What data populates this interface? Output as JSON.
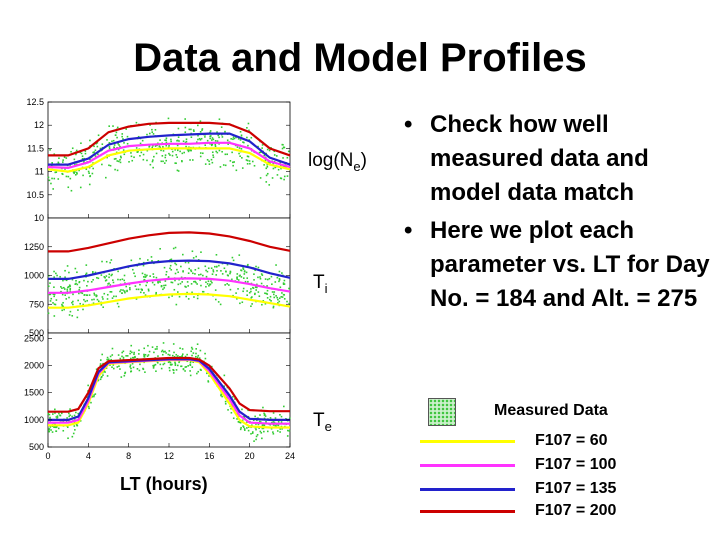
{
  "title": "Data and Model Profiles",
  "bullets": [
    "Check how well measured data and model data match",
    "Here we plot each parameter vs. LT for Day No. = 184 and Alt. = 275"
  ],
  "bullet_symbol": "•",
  "legend": {
    "measured_label": "Measured Data",
    "items": [
      {
        "label": "F107 = 60",
        "color": "#ffff00"
      },
      {
        "label": "F107 = 100",
        "color": "#ff33ff"
      },
      {
        "label": "F107 = 135",
        "color": "#2222cc"
      },
      {
        "label": "F107 = 200",
        "color": "#cc0000"
      }
    ]
  },
  "panel_labels": {
    "ne_base": "log(N",
    "ne_sub": "e",
    "ne_close": ")",
    "ti_base": "T",
    "ti_sub": "i",
    "te_base": "T",
    "te_sub": "e"
  },
  "xlabel": "LT (hours)",
  "chart_data": [
    {
      "type": "line",
      "ylabel": "log(Ne)",
      "xlabel": "LT (hours)",
      "xlim": [
        0,
        24
      ],
      "ylim": [
        10,
        12.5
      ],
      "yticks": [
        "12.5",
        "12",
        "11.5",
        "11",
        "10.5",
        "10"
      ],
      "yticks_vals": [
        12.5,
        12,
        11.5,
        11,
        10.5,
        10
      ],
      "scatter_band": {
        "color": "#33cc33",
        "center": "F107 = 100",
        "spread": 0.35
      },
      "x": [
        0,
        2,
        4,
        6,
        8,
        10,
        12,
        14,
        16,
        18,
        20,
        22,
        24
      ],
      "series": [
        {
          "name": "F107 = 60",
          "color": "#ffff00",
          "values": [
            11.05,
            11.0,
            11.1,
            11.35,
            11.45,
            11.48,
            11.5,
            11.5,
            11.5,
            11.5,
            11.4,
            11.15,
            11.05
          ]
        },
        {
          "name": "F107 = 100",
          "color": "#ff33ff",
          "values": [
            11.1,
            11.08,
            11.2,
            11.45,
            11.55,
            11.58,
            11.6,
            11.6,
            11.62,
            11.62,
            11.5,
            11.22,
            11.1
          ]
        },
        {
          "name": "F107 = 135",
          "color": "#2222cc",
          "values": [
            11.15,
            11.15,
            11.28,
            11.58,
            11.7,
            11.75,
            11.78,
            11.8,
            11.82,
            11.82,
            11.65,
            11.3,
            11.15
          ]
        },
        {
          "name": "F107 = 200",
          "color": "#cc0000",
          "values": [
            11.35,
            11.35,
            11.5,
            11.85,
            11.97,
            12.03,
            12.05,
            12.05,
            12.05,
            12.02,
            11.85,
            11.5,
            11.35
          ]
        }
      ]
    },
    {
      "type": "line",
      "ylabel": "Ti",
      "xlabel": "LT (hours)",
      "xlim": [
        0,
        24
      ],
      "ylim": [
        500,
        1500
      ],
      "yticks": [
        "1250",
        "1000",
        "750",
        "500"
      ],
      "yticks_vals": [
        1250,
        1000,
        750,
        500
      ],
      "scatter_band": {
        "color": "#33cc33",
        "center": "F107 = 100",
        "spread": 160
      },
      "x": [
        0,
        2,
        4,
        6,
        8,
        10,
        12,
        14,
        16,
        18,
        20,
        22,
        24
      ],
      "series": [
        {
          "name": "F107 = 60",
          "color": "#ffff00",
          "values": [
            720,
            720,
            740,
            770,
            800,
            820,
            835,
            840,
            835,
            820,
            790,
            760,
            730
          ]
        },
        {
          "name": "F107 = 100",
          "color": "#ff33ff",
          "values": [
            850,
            850,
            870,
            900,
            930,
            955,
            970,
            975,
            970,
            955,
            925,
            890,
            860
          ]
        },
        {
          "name": "F107 = 135",
          "color": "#2222cc",
          "values": [
            970,
            970,
            1000,
            1040,
            1080,
            1110,
            1125,
            1130,
            1125,
            1105,
            1070,
            1020,
            980
          ]
        },
        {
          "name": "F107 = 200",
          "color": "#cc0000",
          "values": [
            1210,
            1210,
            1240,
            1280,
            1320,
            1350,
            1370,
            1375,
            1365,
            1340,
            1300,
            1250,
            1215
          ]
        }
      ]
    },
    {
      "type": "line",
      "ylabel": "Te",
      "xlabel": "LT (hours)",
      "xlim": [
        0,
        24
      ],
      "ylim": [
        500,
        2600
      ],
      "yticks": [
        "2500",
        "2000",
        "1500",
        "1000",
        "500"
      ],
      "yticks_vals": [
        2500,
        2000,
        1500,
        1000,
        500
      ],
      "xticks": [
        "0",
        "4",
        "8",
        "12",
        "16",
        "20",
        "24"
      ],
      "xticks_vals": [
        0,
        4,
        8,
        12,
        16,
        20,
        24
      ],
      "scatter_band": {
        "color": "#33cc33",
        "center": "F107 = 100",
        "spread": 200
      },
      "x": [
        0,
        2,
        3,
        4,
        5,
        6,
        8,
        10,
        12,
        14,
        15,
        16,
        18,
        19,
        20,
        22,
        24
      ],
      "series": [
        {
          "name": "F107 = 60",
          "color": "#ffff00",
          "values": [
            900,
            900,
            950,
            1300,
            1800,
            2030,
            2060,
            2080,
            2100,
            2100,
            2060,
            1850,
            1300,
            1000,
            880,
            860,
            860
          ]
        },
        {
          "name": "F107 = 100",
          "color": "#ff33ff",
          "values": [
            950,
            950,
            1000,
            1350,
            1850,
            2050,
            2070,
            2090,
            2110,
            2110,
            2080,
            1900,
            1380,
            1080,
            950,
            930,
            930
          ]
        },
        {
          "name": "F107 = 135",
          "color": "#2222cc",
          "values": [
            1000,
            1000,
            1060,
            1400,
            1880,
            2060,
            2080,
            2100,
            2120,
            2120,
            2090,
            1940,
            1450,
            1150,
            1020,
            1000,
            1000
          ]
        },
        {
          "name": "F107 = 200",
          "color": "#cc0000",
          "values": [
            1150,
            1150,
            1200,
            1500,
            1950,
            2080,
            2100,
            2120,
            2140,
            2140,
            2110,
            2000,
            1580,
            1300,
            1180,
            1160,
            1160
          ]
        }
      ]
    }
  ]
}
